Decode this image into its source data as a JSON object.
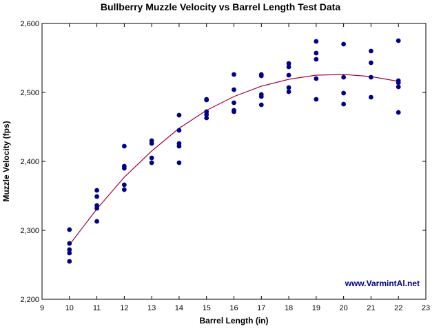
{
  "chart_data": {
    "type": "scatter",
    "title": "Bullberry Muzzle Velocity vs Barrel Length Test Data",
    "xlabel": "Barrel Length (in)",
    "ylabel": "Muzzle Velocity (fps)",
    "xlim": [
      9,
      23
    ],
    "ylim": [
      2200,
      2600
    ],
    "x_ticks": [
      9,
      10,
      11,
      12,
      13,
      14,
      15,
      16,
      17,
      18,
      19,
      20,
      21,
      22,
      23
    ],
    "y_ticks": [
      2200,
      2300,
      2400,
      2500,
      2600
    ],
    "y_tick_labels": [
      "2,200",
      "2,300",
      "2,400",
      "2,500",
      "2,600"
    ],
    "grid": false,
    "watermark": "www.VarmintAl.net",
    "colors": {
      "points": "#00008b",
      "fit_line": "#a0003c",
      "watermark": "#00008b"
    },
    "series": [
      {
        "type": "scatter",
        "points": [
          [
            10,
            2301
          ],
          [
            10,
            2281
          ],
          [
            10,
            2272
          ],
          [
            10,
            2267
          ],
          [
            10,
            2255
          ],
          [
            11,
            2358
          ],
          [
            11,
            2349
          ],
          [
            11,
            2336
          ],
          [
            11,
            2332
          ],
          [
            11,
            2313
          ],
          [
            12,
            2422
          ],
          [
            12,
            2393
          ],
          [
            12,
            2390
          ],
          [
            12,
            2366
          ],
          [
            12,
            2359
          ],
          [
            13,
            2430
          ],
          [
            13,
            2426
          ],
          [
            13,
            2405
          ],
          [
            13,
            2398
          ],
          [
            14,
            2467
          ],
          [
            14,
            2445
          ],
          [
            14,
            2426
          ],
          [
            14,
            2422
          ],
          [
            14,
            2398
          ],
          [
            15,
            2490
          ],
          [
            15,
            2489
          ],
          [
            15,
            2472
          ],
          [
            15,
            2468
          ],
          [
            15,
            2463
          ],
          [
            16,
            2526
          ],
          [
            16,
            2504
          ],
          [
            16,
            2485
          ],
          [
            16,
            2474
          ],
          [
            16,
            2472
          ],
          [
            17,
            2526
          ],
          [
            17,
            2524
          ],
          [
            17,
            2497
          ],
          [
            17,
            2494
          ],
          [
            17,
            2482
          ],
          [
            18,
            2542
          ],
          [
            18,
            2537
          ],
          [
            18,
            2525
          ],
          [
            18,
            2507
          ],
          [
            18,
            2501
          ],
          [
            19,
            2574
          ],
          [
            19,
            2557
          ],
          [
            19,
            2548
          ],
          [
            19,
            2520
          ],
          [
            19,
            2490
          ],
          [
            20,
            2570
          ],
          [
            20,
            2522
          ],
          [
            20,
            2499
          ],
          [
            20,
            2483
          ],
          [
            21,
            2560
          ],
          [
            21,
            2543
          ],
          [
            21,
            2522
          ],
          [
            21,
            2493
          ],
          [
            22,
            2575
          ],
          [
            22,
            2517
          ],
          [
            22,
            2514
          ],
          [
            22,
            2508
          ],
          [
            22,
            2471
          ]
        ]
      },
      {
        "type": "line",
        "points": [
          [
            10,
            2279
          ],
          [
            11,
            2331
          ],
          [
            12,
            2377
          ],
          [
            13,
            2415
          ],
          [
            14,
            2448
          ],
          [
            15,
            2474
          ],
          [
            16,
            2494
          ],
          [
            17,
            2509
          ],
          [
            18,
            2519
          ],
          [
            19,
            2525
          ],
          [
            20,
            2526
          ],
          [
            21,
            2523
          ],
          [
            22,
            2516
          ]
        ]
      }
    ]
  }
}
